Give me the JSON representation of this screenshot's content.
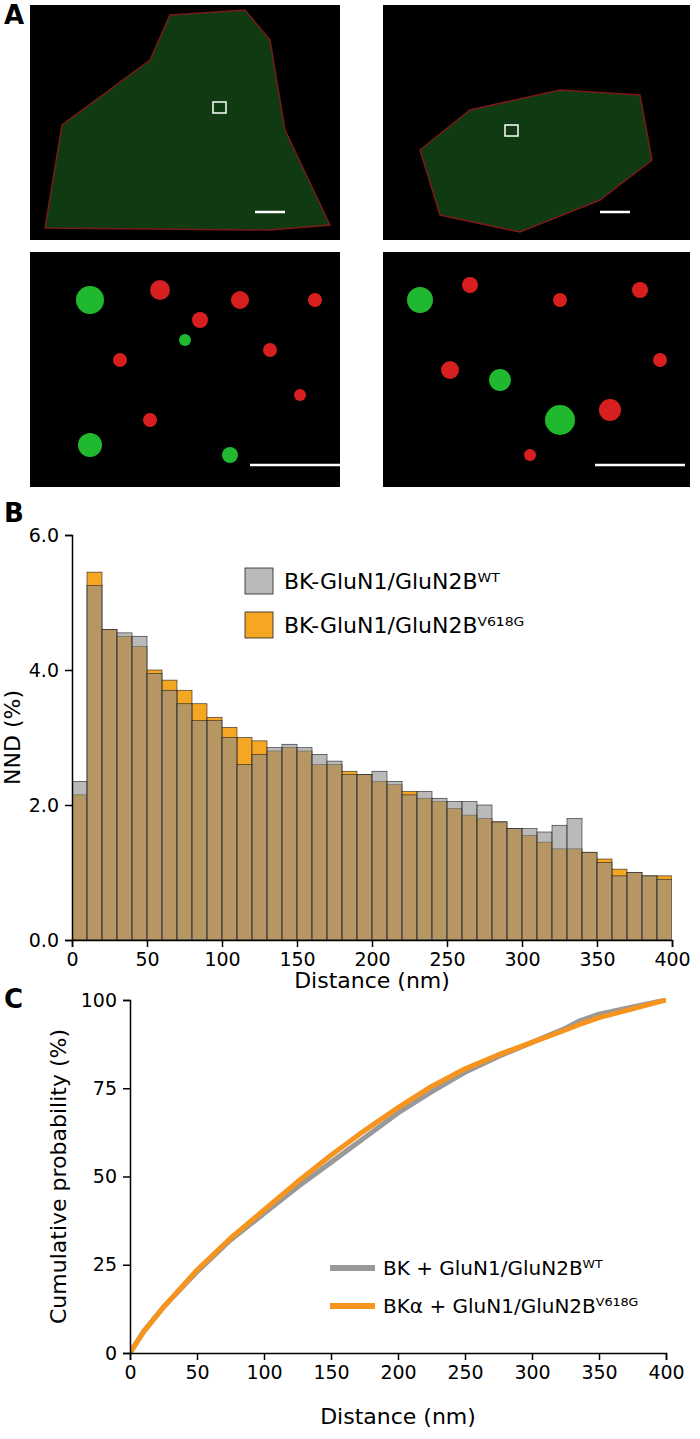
{
  "chart_data": [
    {
      "type": "image",
      "label": "A"
    },
    {
      "type": "histogram",
      "label": "B",
      "x_label": "Distance (nm)",
      "y_label": "NND (%)",
      "bins": [
        0,
        10,
        20,
        30,
        40,
        50,
        60,
        70,
        80,
        90,
        100,
        110,
        120,
        130,
        140,
        150,
        160,
        170,
        180,
        190,
        200,
        210,
        220,
        230,
        240,
        250,
        260,
        270,
        280,
        290,
        300,
        310,
        320,
        330,
        340,
        350,
        360,
        370,
        380,
        390,
        400
      ],
      "series": [
        {
          "name": "BK-GluN1/GluN2Bᵂᵀ",
          "color": "#8c8c8c",
          "values": [
            2.35,
            5.25,
            4.6,
            4.55,
            4.5,
            3.95,
            3.7,
            3.5,
            3.25,
            3.25,
            3.0,
            2.6,
            2.75,
            2.85,
            2.9,
            2.85,
            2.75,
            2.65,
            2.45,
            2.45,
            2.5,
            2.35,
            2.15,
            2.2,
            2.1,
            2.05,
            2.05,
            2.0,
            1.75,
            1.65,
            1.65,
            1.6,
            1.7,
            1.8,
            1.3,
            1.15,
            0.95,
            1.0,
            0.95,
            0.9
          ]
        },
        {
          "name": "BK-GluN1/GluN2Bⱽ⁶¹⁸ᴳ",
          "color": "#f5a623",
          "values": [
            2.15,
            5.45,
            4.6,
            4.5,
            4.35,
            4.0,
            3.85,
            3.7,
            3.5,
            3.3,
            3.15,
            3.0,
            2.95,
            2.8,
            2.85,
            2.8,
            2.6,
            2.6,
            2.5,
            2.45,
            2.35,
            2.3,
            2.2,
            2.1,
            2.05,
            1.95,
            1.85,
            1.8,
            1.75,
            1.65,
            1.55,
            1.45,
            1.35,
            1.35,
            1.3,
            1.2,
            1.05,
            1.0,
            0.95,
            0.95
          ]
        }
      ],
      "xlim": [
        0,
        400
      ],
      "xticks": [
        0,
        50,
        100,
        150,
        200,
        250,
        300,
        350,
        400
      ],
      "ylim": [
        0,
        6
      ],
      "yticks": [
        {
          "value": 0,
          "label": "0.0"
        },
        {
          "value": 2,
          "label": "2.0"
        },
        {
          "value": 4,
          "label": "4.0"
        },
        {
          "value": 6,
          "label": "6.0"
        }
      ],
      "legend": "top"
    },
    {
      "type": "line",
      "label": "C",
      "x_label": "Distance (nm)",
      "y_label": "Cumulative probability (%)",
      "x": [
        0,
        10,
        25,
        50,
        75,
        100,
        125,
        150,
        175,
        200,
        225,
        250,
        275,
        300,
        325,
        335,
        350,
        375,
        400
      ],
      "series": [
        {
          "name": "BK + GluN1/GluN2Bᵂᵀ",
          "color": "#999999",
          "values": [
            0,
            6,
            13,
            23,
            32,
            39.5,
            47,
            54,
            61,
            68,
            74,
            79.5,
            84,
            88,
            92,
            94,
            96,
            98,
            100
          ]
        },
        {
          "name": "BKα + GluN1/GluN2Bⱽ⁶¹⁸ᴳ",
          "color": "#f7941d",
          "values": [
            0,
            6,
            13,
            23.5,
            32.5,
            40.5,
            48.5,
            56,
            63,
            69.5,
            75.5,
            80.5,
            84.5,
            88,
            91.5,
            93,
            95,
            97.5,
            100
          ]
        }
      ],
      "xlim": [
        0,
        400
      ],
      "xticks": [
        0,
        50,
        100,
        150,
        200,
        250,
        300,
        350,
        400
      ],
      "ylim": [
        0,
        100
      ],
      "yticks": [
        0,
        25,
        50,
        75,
        100
      ],
      "legend": "bottom-right"
    }
  ]
}
